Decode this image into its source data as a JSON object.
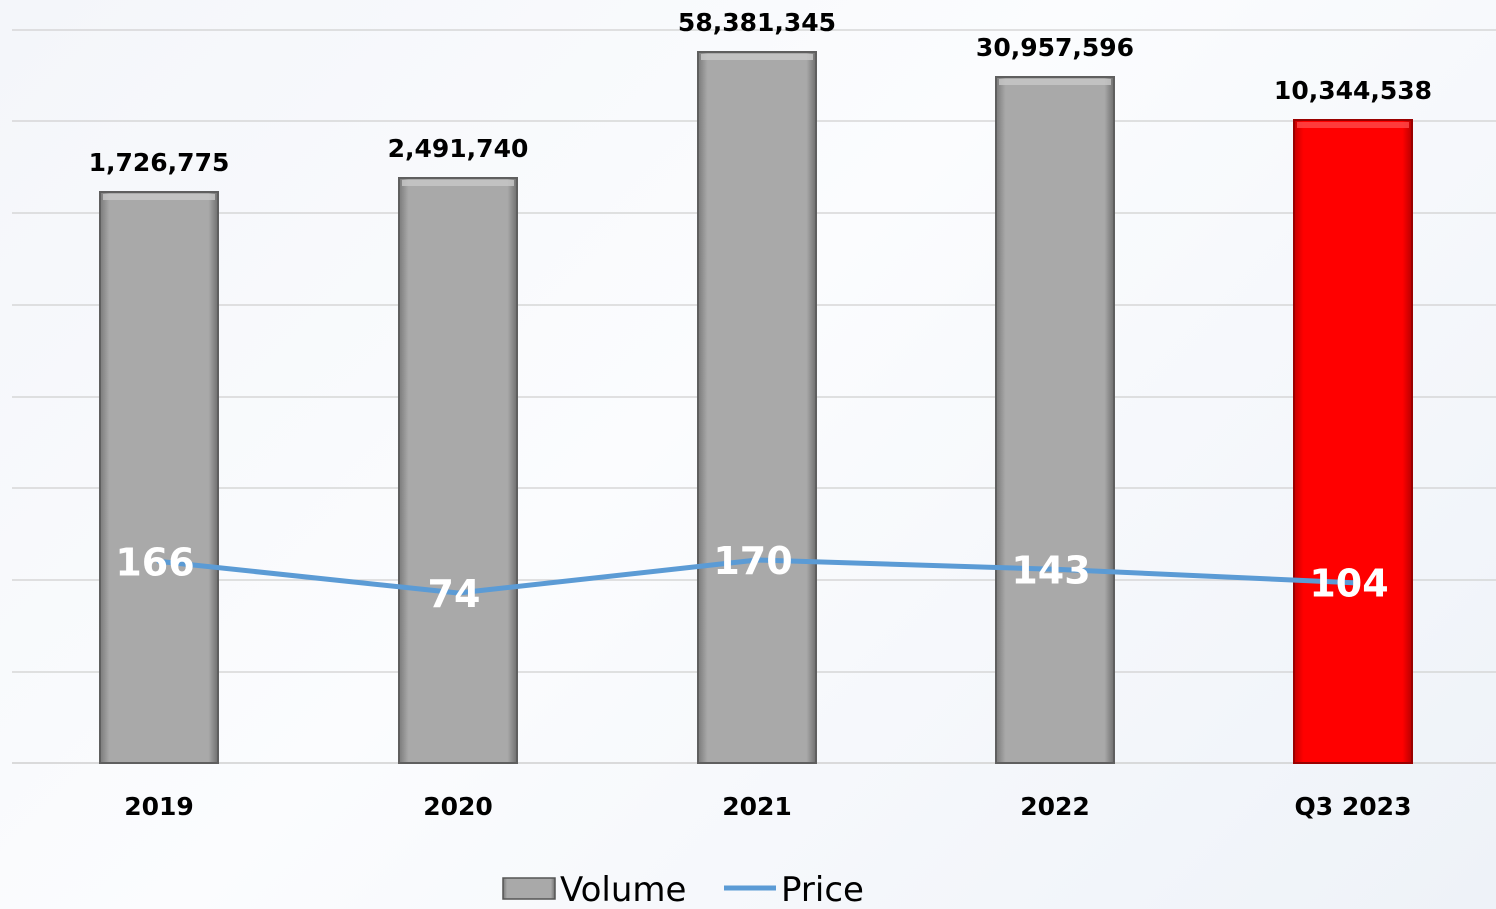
{
  "chart_data": {
    "type": "bar",
    "categories": [
      "2019",
      "2020",
      "2021",
      "2022",
      "Q3 2023"
    ],
    "series": [
      {
        "name": "Volume",
        "type": "bar",
        "values": [
          1726775,
          2491740,
          58381345,
          30957596,
          10344538
        ],
        "value_labels": [
          "1,726,775",
          "2,491,740",
          "58,381,345",
          "30,957,596",
          "10,344,538"
        ],
        "colors": [
          "#a6a6a6",
          "#a6a6a6",
          "#a6a6a6",
          "#a6a6a6",
          "#ff0000"
        ],
        "display_scale": "broken"
      },
      {
        "name": "Price",
        "type": "line",
        "values": [
          166,
          74,
          170,
          143,
          104
        ],
        "value_labels": [
          "166",
          "74",
          "170",
          "143",
          "104"
        ],
        "color": "#5b9bd5"
      }
    ],
    "grid": true,
    "legend": "bottom-center"
  }
}
